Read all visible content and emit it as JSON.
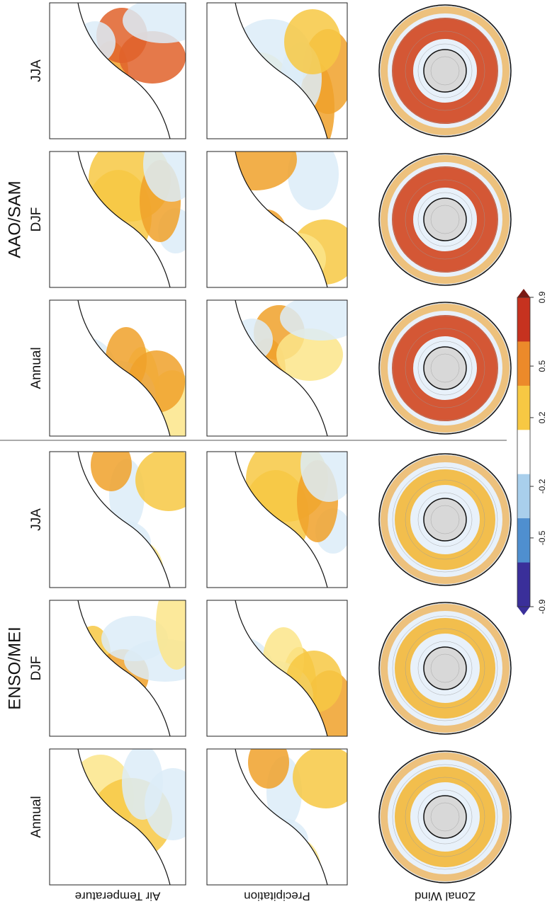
{
  "groups": [
    {
      "title": "ENSO/MEI",
      "panels": [
        "Annual",
        "DJF",
        "JJA"
      ]
    },
    {
      "title": "AAO/SAM",
      "panels": [
        "Annual",
        "DJF",
        "JJA"
      ]
    }
  ],
  "rows": [
    "Air Temperature",
    "Precipitation",
    "Zonal Wind"
  ],
  "colorbar": {
    "ticks": [
      -0.9,
      -0.5,
      -0.2,
      0.2,
      0.5,
      0.9
    ],
    "lim": [
      -0.9,
      0.9
    ]
  }
}
